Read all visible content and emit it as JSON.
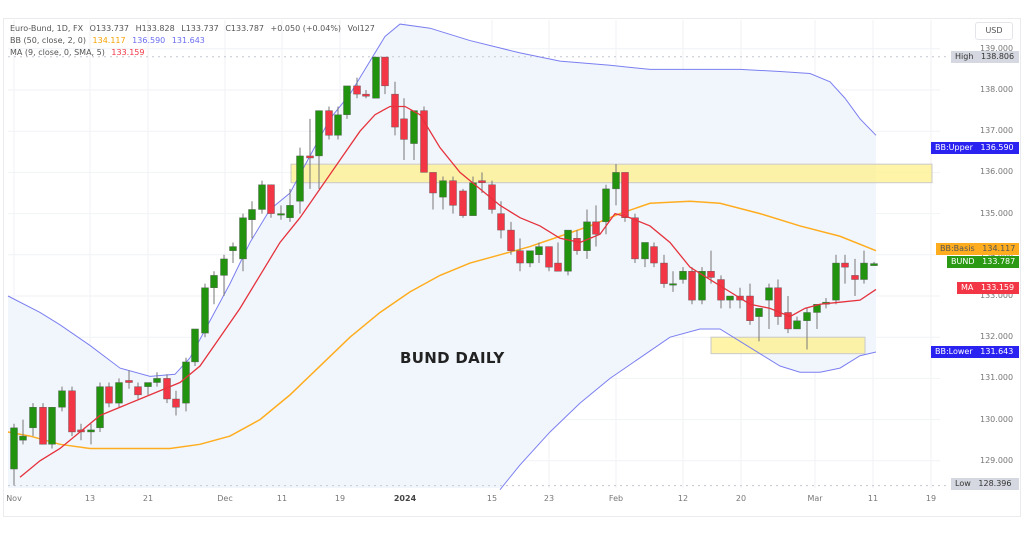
{
  "header": {
    "symbol": "Euro-Bund, 1D, FX",
    "open": "O133.737",
    "high": "H133.828",
    "low": "L133.737",
    "close": "C133.787",
    "change": "+0.050 (+0.04%)",
    "volume": "Vol127",
    "bb_label": "BB (50, close, 2, 0)",
    "bb_basis": "134.117",
    "bb_upper": "136.590",
    "bb_lower": "131.643",
    "ma_label": "MA (9, close, 0, SMA, 5)",
    "ma_value": "133.159"
  },
  "currency": "USD",
  "annotation": "BUND DAILY",
  "price_labels": {
    "high": {
      "label": "High",
      "value": "138.806"
    },
    "low": {
      "label": "Low",
      "value": "128.396"
    },
    "bb_upper": {
      "label": "BB:Upper",
      "value": "136.590"
    },
    "bb_basis": {
      "label": "BB:Basis",
      "value": "134.117"
    },
    "bund": {
      "label": "BUND",
      "value": "133.787"
    },
    "ma": {
      "label": "MA",
      "value": "133.159"
    },
    "bb_lower": {
      "label": "BB:Lower",
      "value": "131.643"
    }
  },
  "colors": {
    "up": "#22930f",
    "down": "#f23645",
    "bb_band": "#7b7ff0",
    "bb_basis": "#ffad1f",
    "ma": "#e5323c",
    "bb_fill": "#f1f6fd",
    "zone": "#fff08a",
    "label_upper": "#2a22f0",
    "label_basis": "#ffad1f",
    "label_bund": "#2a9a14",
    "label_ma": "#f23645",
    "label_hl": "#d5d8e0"
  },
  "chart_data": {
    "type": "candlestick",
    "title": "BUND DAILY",
    "instrument": "Euro-Bund, 1D, FX",
    "ylabel": "USD",
    "ylim": [
      128.2,
      139.1
    ],
    "y_ticks": [
      "129.000",
      "130.000",
      "131.000",
      "132.000",
      "133.000",
      "134.000",
      "135.000",
      "136.000",
      "137.000",
      "138.000",
      "139.000"
    ],
    "x_ticks": [
      {
        "label": "Nov",
        "x": 14
      },
      {
        "label": "13",
        "x": 90
      },
      {
        "label": "21",
        "x": 148
      },
      {
        "label": "Dec",
        "x": 225
      },
      {
        "label": "11",
        "x": 282
      },
      {
        "label": "19",
        "x": 340
      },
      {
        "label": "2024",
        "x": 405
      },
      {
        "label": "15",
        "x": 492
      },
      {
        "label": "23",
        "x": 549
      },
      {
        "label": "Feb",
        "x": 616
      },
      {
        "label": "12",
        "x": 683
      },
      {
        "label": "20",
        "x": 741
      },
      {
        "label": "Mar",
        "x": 815
      },
      {
        "label": "11",
        "x": 873
      },
      {
        "label": "19",
        "x": 931
      }
    ],
    "candles": [
      {
        "x": 14,
        "o": 128.8,
        "h": 129.9,
        "l": 128.4,
        "c": 129.8
      },
      {
        "x": 23,
        "o": 129.5,
        "h": 130.0,
        "l": 129.4,
        "c": 129.6
      },
      {
        "x": 33,
        "o": 129.8,
        "h": 130.4,
        "l": 129.6,
        "c": 130.3
      },
      {
        "x": 43,
        "o": 130.3,
        "h": 130.4,
        "l": 129.4,
        "c": 129.4
      },
      {
        "x": 52,
        "o": 129.4,
        "h": 130.3,
        "l": 129.3,
        "c": 130.3
      },
      {
        "x": 62,
        "o": 130.3,
        "h": 130.8,
        "l": 130.2,
        "c": 130.7
      },
      {
        "x": 72,
        "o": 130.7,
        "h": 130.8,
        "l": 129.6,
        "c": 129.7
      },
      {
        "x": 81,
        "o": 129.75,
        "h": 129.9,
        "l": 129.5,
        "c": 129.7
      },
      {
        "x": 91,
        "o": 129.7,
        "h": 129.9,
        "l": 129.4,
        "c": 129.75
      },
      {
        "x": 100,
        "o": 129.8,
        "h": 130.9,
        "l": 129.7,
        "c": 130.8
      },
      {
        "x": 109,
        "o": 130.8,
        "h": 130.9,
        "l": 130.3,
        "c": 130.4
      },
      {
        "x": 119,
        "o": 130.4,
        "h": 131.0,
        "l": 130.3,
        "c": 130.9
      },
      {
        "x": 129,
        "o": 130.95,
        "h": 131.2,
        "l": 130.75,
        "c": 130.9
      },
      {
        "x": 138,
        "o": 130.8,
        "h": 130.9,
        "l": 130.5,
        "c": 130.6
      },
      {
        "x": 148,
        "o": 130.8,
        "h": 130.9,
        "l": 130.6,
        "c": 130.9
      },
      {
        "x": 157,
        "o": 130.9,
        "h": 131.15,
        "l": 130.8,
        "c": 131.0
      },
      {
        "x": 167,
        "o": 131.0,
        "h": 131.1,
        "l": 130.4,
        "c": 130.5
      },
      {
        "x": 176,
        "o": 130.5,
        "h": 130.7,
        "l": 130.1,
        "c": 130.3
      },
      {
        "x": 186,
        "o": 130.4,
        "h": 131.5,
        "l": 130.2,
        "c": 131.4
      },
      {
        "x": 195,
        "o": 131.4,
        "h": 132.2,
        "l": 131.3,
        "c": 132.2
      },
      {
        "x": 205,
        "o": 132.1,
        "h": 133.3,
        "l": 132.0,
        "c": 133.2
      },
      {
        "x": 214,
        "o": 133.2,
        "h": 133.6,
        "l": 132.8,
        "c": 133.5
      },
      {
        "x": 224,
        "o": 133.5,
        "h": 134.0,
        "l": 133.0,
        "c": 133.9
      },
      {
        "x": 233,
        "o": 134.1,
        "h": 134.3,
        "l": 133.8,
        "c": 134.2
      },
      {
        "x": 243,
        "o": 133.9,
        "h": 135.0,
        "l": 133.6,
        "c": 134.9
      },
      {
        "x": 252,
        "o": 134.85,
        "h": 135.3,
        "l": 134.4,
        "c": 135.1
      },
      {
        "x": 262,
        "o": 135.1,
        "h": 135.8,
        "l": 135.0,
        "c": 135.7
      },
      {
        "x": 271,
        "o": 135.7,
        "h": 135.7,
        "l": 134.9,
        "c": 135.0
      },
      {
        "x": 281,
        "o": 135.0,
        "h": 135.2,
        "l": 134.85,
        "c": 135.0
      },
      {
        "x": 290,
        "o": 134.9,
        "h": 135.6,
        "l": 134.8,
        "c": 135.2
      },
      {
        "x": 300,
        "o": 135.3,
        "h": 136.6,
        "l": 135.0,
        "c": 136.4
      },
      {
        "x": 310,
        "o": 136.4,
        "h": 137.3,
        "l": 135.6,
        "c": 136.35
      },
      {
        "x": 319,
        "o": 136.4,
        "h": 137.5,
        "l": 135.6,
        "c": 137.5
      },
      {
        "x": 329,
        "o": 137.5,
        "h": 137.6,
        "l": 136.8,
        "c": 136.9
      },
      {
        "x": 338,
        "o": 136.9,
        "h": 137.6,
        "l": 136.8,
        "c": 137.4
      },
      {
        "x": 347,
        "o": 137.4,
        "h": 138.1,
        "l": 137.3,
        "c": 138.1
      },
      {
        "x": 357,
        "o": 138.1,
        "h": 138.3,
        "l": 137.8,
        "c": 137.9
      },
      {
        "x": 366,
        "o": 137.9,
        "h": 138.0,
        "l": 137.8,
        "c": 137.85
      },
      {
        "x": 376,
        "o": 137.8,
        "h": 138.8,
        "l": 137.8,
        "c": 138.8
      },
      {
        "x": 385,
        "o": 138.8,
        "h": 138.8,
        "l": 137.9,
        "c": 138.1
      },
      {
        "x": 395,
        "o": 137.9,
        "h": 138.2,
        "l": 136.9,
        "c": 137.1
      },
      {
        "x": 404,
        "o": 137.3,
        "h": 137.8,
        "l": 136.3,
        "c": 136.8
      },
      {
        "x": 414,
        "o": 136.7,
        "h": 137.4,
        "l": 136.3,
        "c": 137.5
      },
      {
        "x": 424,
        "o": 137.5,
        "h": 137.6,
        "l": 136.0,
        "c": 136.0
      },
      {
        "x": 433,
        "o": 136.0,
        "h": 136.0,
        "l": 135.1,
        "c": 135.5
      },
      {
        "x": 443,
        "o": 135.4,
        "h": 135.9,
        "l": 135.1,
        "c": 135.8
      },
      {
        "x": 453,
        "o": 135.8,
        "h": 135.9,
        "l": 135.0,
        "c": 135.2
      },
      {
        "x": 463,
        "o": 135.55,
        "h": 135.6,
        "l": 134.9,
        "c": 134.95
      },
      {
        "x": 473,
        "o": 134.95,
        "h": 135.9,
        "l": 134.95,
        "c": 135.75
      },
      {
        "x": 482,
        "o": 135.8,
        "h": 136.0,
        "l": 135.5,
        "c": 135.75
      },
      {
        "x": 492,
        "o": 135.7,
        "h": 135.8,
        "l": 135.0,
        "c": 135.1
      },
      {
        "x": 501,
        "o": 135.0,
        "h": 135.3,
        "l": 134.4,
        "c": 134.6
      },
      {
        "x": 511,
        "o": 134.6,
        "h": 134.8,
        "l": 134.0,
        "c": 134.1
      },
      {
        "x": 520,
        "o": 134.1,
        "h": 134.4,
        "l": 133.6,
        "c": 133.8
      },
      {
        "x": 530,
        "o": 133.8,
        "h": 134.0,
        "l": 133.7,
        "c": 134.1
      },
      {
        "x": 539,
        "o": 134.0,
        "h": 134.3,
        "l": 133.8,
        "c": 134.2
      },
      {
        "x": 549,
        "o": 134.2,
        "h": 134.2,
        "l": 133.6,
        "c": 133.7
      },
      {
        "x": 558,
        "o": 133.8,
        "h": 134.3,
        "l": 133.6,
        "c": 133.6
      },
      {
        "x": 568,
        "o": 133.6,
        "h": 134.5,
        "l": 133.5,
        "c": 134.6
      },
      {
        "x": 577,
        "o": 134.4,
        "h": 134.6,
        "l": 134.0,
        "c": 134.1
      },
      {
        "x": 587,
        "o": 134.1,
        "h": 135.1,
        "l": 133.9,
        "c": 134.8
      },
      {
        "x": 596,
        "o": 134.8,
        "h": 135.2,
        "l": 134.2,
        "c": 134.5
      },
      {
        "x": 606,
        "o": 134.8,
        "h": 135.7,
        "l": 134.5,
        "c": 135.6
      },
      {
        "x": 616,
        "o": 135.6,
        "h": 136.2,
        "l": 135.2,
        "c": 136.0
      },
      {
        "x": 625,
        "o": 136.0,
        "h": 136.0,
        "l": 134.8,
        "c": 134.9
      },
      {
        "x": 635,
        "o": 134.9,
        "h": 135.0,
        "l": 133.8,
        "c": 133.9
      },
      {
        "x": 645,
        "o": 133.9,
        "h": 134.2,
        "l": 133.7,
        "c": 134.3
      },
      {
        "x": 654,
        "o": 134.2,
        "h": 134.3,
        "l": 133.7,
        "c": 133.8
      },
      {
        "x": 664,
        "o": 133.8,
        "h": 134.0,
        "l": 133.2,
        "c": 133.3
      },
      {
        "x": 673,
        "o": 133.3,
        "h": 133.6,
        "l": 133.1,
        "c": 133.3
      },
      {
        "x": 683,
        "o": 133.4,
        "h": 133.7,
        "l": 133.3,
        "c": 133.6
      },
      {
        "x": 692,
        "o": 133.6,
        "h": 133.7,
        "l": 132.8,
        "c": 132.9
      },
      {
        "x": 702,
        "o": 132.9,
        "h": 133.7,
        "l": 132.8,
        "c": 133.6
      },
      {
        "x": 711,
        "o": 133.6,
        "h": 134.1,
        "l": 133.3,
        "c": 133.45
      },
      {
        "x": 721,
        "o": 133.4,
        "h": 133.5,
        "l": 132.7,
        "c": 132.9
      },
      {
        "x": 730,
        "o": 132.9,
        "h": 133.0,
        "l": 132.7,
        "c": 133.0
      },
      {
        "x": 740,
        "o": 133.0,
        "h": 133.2,
        "l": 132.7,
        "c": 132.9
      },
      {
        "x": 750,
        "o": 133.0,
        "h": 133.3,
        "l": 132.3,
        "c": 132.4
      },
      {
        "x": 759,
        "o": 132.5,
        "h": 132.7,
        "l": 131.9,
        "c": 132.7
      },
      {
        "x": 769,
        "o": 132.9,
        "h": 133.3,
        "l": 132.2,
        "c": 133.2
      },
      {
        "x": 778,
        "o": 133.2,
        "h": 133.4,
        "l": 132.3,
        "c": 132.5
      },
      {
        "x": 788,
        "o": 132.6,
        "h": 133.0,
        "l": 132.1,
        "c": 132.2
      },
      {
        "x": 797,
        "o": 132.2,
        "h": 132.5,
        "l": 132.2,
        "c": 132.4
      },
      {
        "x": 807,
        "o": 132.4,
        "h": 132.7,
        "l": 131.7,
        "c": 132.6
      },
      {
        "x": 817,
        "o": 132.6,
        "h": 132.8,
        "l": 132.2,
        "c": 132.8
      },
      {
        "x": 826,
        "o": 132.8,
        "h": 132.95,
        "l": 132.7,
        "c": 132.85
      },
      {
        "x": 836,
        "o": 132.9,
        "h": 134.0,
        "l": 132.8,
        "c": 133.8
      },
      {
        "x": 845,
        "o": 133.8,
        "h": 134.0,
        "l": 133.3,
        "c": 133.7
      },
      {
        "x": 855,
        "o": 133.5,
        "h": 133.9,
        "l": 133.0,
        "c": 133.4
      },
      {
        "x": 864,
        "o": 133.4,
        "h": 134.1,
        "l": 133.3,
        "c": 133.8
      },
      {
        "x": 874,
        "o": 133.737,
        "h": 133.828,
        "l": 133.737,
        "c": 133.787
      }
    ],
    "bb_upper": [
      [
        8,
        133.0
      ],
      [
        40,
        132.6
      ],
      [
        60,
        132.3
      ],
      [
        90,
        131.8
      ],
      [
        120,
        131.25
      ],
      [
        150,
        131.05
      ],
      [
        175,
        131.1
      ],
      [
        190,
        131.5
      ],
      [
        210,
        132.4
      ],
      [
        230,
        133.3
      ],
      [
        250,
        134.3
      ],
      [
        270,
        135.1
      ],
      [
        290,
        135.5
      ],
      [
        310,
        136.4
      ],
      [
        330,
        137.3
      ],
      [
        350,
        137.9
      ],
      [
        370,
        138.7
      ],
      [
        385,
        139.3
      ],
      [
        400,
        139.6
      ],
      [
        430,
        139.5
      ],
      [
        470,
        139.2
      ],
      [
        520,
        138.9
      ],
      [
        560,
        138.7
      ],
      [
        610,
        138.6
      ],
      [
        650,
        138.5
      ],
      [
        700,
        138.5
      ],
      [
        740,
        138.5
      ],
      [
        780,
        138.45
      ],
      [
        810,
        138.4
      ],
      [
        830,
        138.2
      ],
      [
        845,
        137.8
      ],
      [
        860,
        137.3
      ],
      [
        876,
        136.9
      ]
    ],
    "bb_basis": [
      [
        8,
        129.7
      ],
      [
        30,
        129.6
      ],
      [
        60,
        129.4
      ],
      [
        90,
        129.3
      ],
      [
        130,
        129.3
      ],
      [
        170,
        129.3
      ],
      [
        200,
        129.4
      ],
      [
        230,
        129.6
      ],
      [
        260,
        130.0
      ],
      [
        290,
        130.6
      ],
      [
        320,
        131.3
      ],
      [
        350,
        132.0
      ],
      [
        380,
        132.6
      ],
      [
        410,
        133.1
      ],
      [
        440,
        133.5
      ],
      [
        470,
        133.8
      ],
      [
        500,
        134.0
      ],
      [
        530,
        134.2
      ],
      [
        560,
        134.45
      ],
      [
        590,
        134.7
      ],
      [
        620,
        135.0
      ],
      [
        650,
        135.25
      ],
      [
        690,
        135.3
      ],
      [
        720,
        135.25
      ],
      [
        760,
        135.0
      ],
      [
        800,
        134.7
      ],
      [
        840,
        134.45
      ],
      [
        876,
        134.1
      ]
    ],
    "ma": [
      [
        20,
        128.6
      ],
      [
        40,
        129.0
      ],
      [
        60,
        129.3
      ],
      [
        80,
        129.7
      ],
      [
        100,
        130.1
      ],
      [
        120,
        130.3
      ],
      [
        140,
        130.5
      ],
      [
        160,
        130.7
      ],
      [
        180,
        130.9
      ],
      [
        200,
        131.3
      ],
      [
        220,
        132.0
      ],
      [
        240,
        132.7
      ],
      [
        260,
        133.5
      ],
      [
        280,
        134.3
      ],
      [
        300,
        134.9
      ],
      [
        320,
        135.6
      ],
      [
        340,
        136.3
      ],
      [
        360,
        137.0
      ],
      [
        375,
        137.4
      ],
      [
        390,
        137.6
      ],
      [
        405,
        137.6
      ],
      [
        420,
        137.4
      ],
      [
        440,
        136.6
      ],
      [
        460,
        136.0
      ],
      [
        480,
        135.6
      ],
      [
        500,
        135.2
      ],
      [
        520,
        134.9
      ],
      [
        540,
        134.7
      ],
      [
        560,
        134.4
      ],
      [
        580,
        134.3
      ],
      [
        600,
        134.5
      ],
      [
        615,
        135.0
      ],
      [
        630,
        134.9
      ],
      [
        650,
        134.7
      ],
      [
        670,
        134.3
      ],
      [
        690,
        133.7
      ],
      [
        710,
        133.4
      ],
      [
        730,
        133.1
      ],
      [
        750,
        132.8
      ],
      [
        770,
        132.7
      ],
      [
        790,
        132.5
      ],
      [
        805,
        132.7
      ],
      [
        820,
        132.8
      ],
      [
        840,
        132.85
      ],
      [
        860,
        132.9
      ],
      [
        876,
        133.16
      ]
    ],
    "bb_lower": [
      [
        500,
        128.3
      ],
      [
        520,
        128.9
      ],
      [
        550,
        129.7
      ],
      [
        580,
        130.4
      ],
      [
        610,
        131.0
      ],
      [
        640,
        131.5
      ],
      [
        670,
        132.0
      ],
      [
        700,
        132.2
      ],
      [
        720,
        132.2
      ],
      [
        740,
        131.9
      ],
      [
        760,
        131.6
      ],
      [
        780,
        131.3
      ],
      [
        800,
        131.15
      ],
      [
        820,
        131.15
      ],
      [
        840,
        131.25
      ],
      [
        860,
        131.55
      ],
      [
        876,
        131.64
      ]
    ],
    "zones": [
      {
        "x1": 291,
        "x2": 932,
        "y_top": 136.2,
        "y_bot": 135.75
      },
      {
        "x1": 711,
        "x2": 865,
        "y_top": 132.0,
        "y_bot": 131.6
      }
    ],
    "high_line": 138.806,
    "low_line": 128.396
  }
}
